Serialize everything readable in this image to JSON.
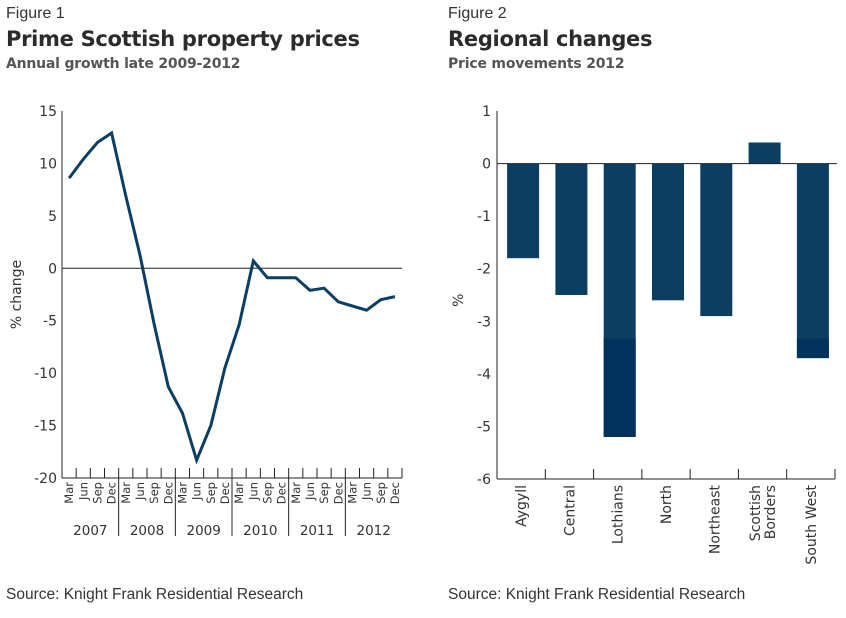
{
  "colors": {
    "series": "#0b3e63",
    "bar": "#0b3e63",
    "bar_dark": "#00325d",
    "axis": "#222222",
    "text": "#333333"
  },
  "figure1": {
    "label": "Figure 1",
    "title": "Prime Scottish property prices",
    "subtitle": "Annual growth late 2009-2012",
    "source": "Source: Knight Frank Residential Research"
  },
  "figure2": {
    "label": "Figure 2",
    "title": "Regional changes",
    "subtitle": "Price movements 2012",
    "source": "Source: Knight Frank Residential Research"
  },
  "chart_data": [
    {
      "type": "line",
      "title": "Prime Scottish property prices",
      "subtitle": "Annual growth late 2009-2012",
      "xlabel": "",
      "ylabel": "% change",
      "ylim": [
        -20,
        15
      ],
      "yticks": [
        15,
        10,
        5,
        0,
        -5,
        -10,
        -15,
        -20
      ],
      "grid": false,
      "zero_line": true,
      "quarters": [
        "Mar",
        "Jun",
        "Sep",
        "Dec"
      ],
      "years": [
        "2007",
        "2008",
        "2009",
        "2010",
        "2011",
        "2012"
      ],
      "x": [
        "Mar 2007",
        "Jun 2007",
        "Sep 2007",
        "Dec 2007",
        "Mar 2008",
        "Jun 2008",
        "Sep 2008",
        "Dec 2008",
        "Mar 2009",
        "Jun 2009",
        "Sep 2009",
        "Dec 2009",
        "Mar 2010",
        "Jun 2010",
        "Sep 2010",
        "Dec 2010",
        "Mar 2011",
        "Jun 2011",
        "Sep 2011",
        "Dec 2011",
        "Mar 2012",
        "Jun 2012",
        "Sep 2012",
        "Dec 2012"
      ],
      "series": [
        {
          "name": "Annual growth",
          "values": [
            8.6,
            10.4,
            12.0,
            12.9,
            6.9,
            1.3,
            -5.3,
            -11.3,
            -13.8,
            -18.3,
            -15.0,
            -9.5,
            -5.4,
            0.7,
            -0.9,
            -0.9,
            -0.9,
            -2.1,
            -1.9,
            -3.2,
            -3.6,
            -4.0,
            -3.0,
            -2.7
          ]
        }
      ]
    },
    {
      "type": "bar",
      "title": "Regional changes",
      "subtitle": "Price movements 2012",
      "xlabel": "",
      "ylabel": "%",
      "ylim": [
        -6,
        1
      ],
      "yticks": [
        1,
        0,
        -1,
        -2,
        -3,
        -4,
        -5,
        -6
      ],
      "grid": false,
      "categories": [
        "Aygyll",
        "Central",
        "Lothians",
        "North",
        "Northeast",
        "Scottish Borders",
        "South West"
      ],
      "category_lines": [
        [
          "Aygyll"
        ],
        [
          "Central"
        ],
        [
          "Lothians"
        ],
        [
          "North"
        ],
        [
          "Northeast"
        ],
        [
          "Scottish",
          "Borders"
        ],
        [
          "South West"
        ]
      ],
      "values": [
        -1.8,
        -2.5,
        -5.2,
        -2.6,
        -2.9,
        0.4,
        -3.7
      ]
    }
  ]
}
